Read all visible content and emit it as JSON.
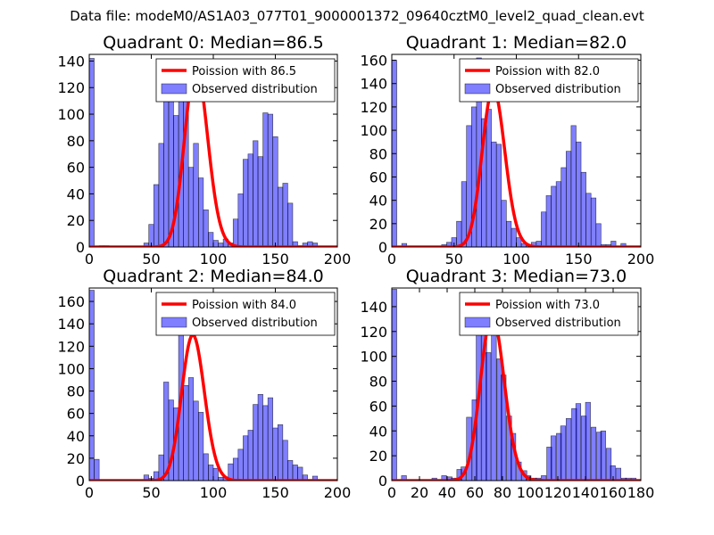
{
  "suptitle": "Data file: modeM0/AS1A03_077T01_9000001372_09640cztM0_level2_quad_clean.evt",
  "chart_data": [
    {
      "type": "bar",
      "title": "Quadrant 0: Median=86.5",
      "legend": [
        "Poission with 86.5",
        "Observed distribution"
      ],
      "legend_location": "top-right",
      "xlim": [
        0,
        200
      ],
      "ylim": [
        0,
        145
      ],
      "xticks": [
        0,
        50,
        100,
        150,
        200
      ],
      "yticks": [
        0,
        20,
        40,
        60,
        80,
        100,
        120,
        140
      ],
      "bin_width": 4,
      "histogram": [
        [
          0,
          142
        ],
        [
          8,
          1
        ],
        [
          12,
          1
        ],
        [
          44,
          3
        ],
        [
          48,
          17
        ],
        [
          52,
          47
        ],
        [
          56,
          78
        ],
        [
          60,
          112
        ],
        [
          64,
          124
        ],
        [
          68,
          99
        ],
        [
          72,
          115
        ],
        [
          76,
          128
        ],
        [
          80,
          60
        ],
        [
          84,
          78
        ],
        [
          88,
          52
        ],
        [
          92,
          28
        ],
        [
          96,
          11
        ],
        [
          100,
          5
        ],
        [
          104,
          3
        ],
        [
          108,
          6
        ],
        [
          112,
          3
        ],
        [
          116,
          21
        ],
        [
          120,
          40
        ],
        [
          124,
          66
        ],
        [
          128,
          70
        ],
        [
          132,
          80
        ],
        [
          136,
          68
        ],
        [
          140,
          101
        ],
        [
          144,
          100
        ],
        [
          148,
          83
        ],
        [
          152,
          45
        ],
        [
          156,
          48
        ],
        [
          160,
          33
        ],
        [
          164,
          4
        ],
        [
          168,
          1
        ],
        [
          172,
          3
        ],
        [
          176,
          4
        ],
        [
          180,
          3
        ]
      ],
      "poisson_peak": 136,
      "poisson_mean": 86.5
    },
    {
      "type": "bar",
      "title": "Quadrant 1: Median=82.0",
      "legend": [
        "Poission with 82.0",
        "Observed distribution"
      ],
      "legend_location": "top-right",
      "xlim": [
        0,
        200
      ],
      "ylim": [
        0,
        165
      ],
      "xticks": [
        0,
        50,
        100,
        150,
        200
      ],
      "yticks": [
        0,
        20,
        40,
        60,
        80,
        100,
        120,
        140,
        160
      ],
      "bin_width": 4,
      "histogram": [
        [
          0,
          160
        ],
        [
          8,
          3
        ],
        [
          40,
          2
        ],
        [
          44,
          4
        ],
        [
          48,
          8
        ],
        [
          52,
          22
        ],
        [
          56,
          56
        ],
        [
          60,
          104
        ],
        [
          64,
          120
        ],
        [
          68,
          162
        ],
        [
          72,
          110
        ],
        [
          76,
          118
        ],
        [
          80,
          90
        ],
        [
          84,
          88
        ],
        [
          88,
          40
        ],
        [
          92,
          22
        ],
        [
          96,
          16
        ],
        [
          100,
          8
        ],
        [
          104,
          3
        ],
        [
          108,
          1
        ],
        [
          112,
          4
        ],
        [
          116,
          5
        ],
        [
          120,
          30
        ],
        [
          124,
          44
        ],
        [
          128,
          52
        ],
        [
          132,
          56
        ],
        [
          136,
          68
        ],
        [
          140,
          82
        ],
        [
          144,
          104
        ],
        [
          148,
          90
        ],
        [
          152,
          64
        ],
        [
          156,
          46
        ],
        [
          160,
          42
        ],
        [
          164,
          20
        ],
        [
          168,
          2
        ],
        [
          172,
          2
        ],
        [
          176,
          5
        ],
        [
          184,
          3
        ]
      ],
      "poisson_peak": 136,
      "poisson_mean": 82.0
    },
    {
      "type": "bar",
      "title": "Quadrant 2: Median=84.0",
      "legend": [
        "Poission with 84.0",
        "Observed distribution"
      ],
      "legend_location": "top-right",
      "xlim": [
        0,
        200
      ],
      "ylim": [
        0,
        172
      ],
      "xticks": [
        0,
        50,
        100,
        150,
        200
      ],
      "yticks": [
        0,
        20,
        40,
        60,
        80,
        100,
        120,
        140,
        160
      ],
      "bin_width": 4,
      "histogram": [
        [
          0,
          170
        ],
        [
          4,
          19
        ],
        [
          44,
          5
        ],
        [
          48,
          2
        ],
        [
          52,
          8
        ],
        [
          56,
          23
        ],
        [
          60,
          88
        ],
        [
          64,
          72
        ],
        [
          68,
          65
        ],
        [
          72,
          162
        ],
        [
          76,
          85
        ],
        [
          80,
          92
        ],
        [
          84,
          71
        ],
        [
          88,
          61
        ],
        [
          92,
          24
        ],
        [
          96,
          14
        ],
        [
          100,
          11
        ],
        [
          104,
          3
        ],
        [
          108,
          3
        ],
        [
          112,
          15
        ],
        [
          116,
          20
        ],
        [
          120,
          28
        ],
        [
          124,
          40
        ],
        [
          128,
          45
        ],
        [
          132,
          68
        ],
        [
          136,
          77
        ],
        [
          140,
          67
        ],
        [
          144,
          74
        ],
        [
          148,
          47
        ],
        [
          152,
          50
        ],
        [
          156,
          36
        ],
        [
          160,
          18
        ],
        [
          164,
          14
        ],
        [
          168,
          12
        ],
        [
          172,
          5
        ],
        [
          176,
          1
        ],
        [
          180,
          4
        ]
      ],
      "poisson_peak": 130,
      "poisson_mean": 84.0
    },
    {
      "type": "bar",
      "title": "Quadrant 3: Median=73.0",
      "legend": [
        "Poission with 73.0",
        "Observed distribution"
      ],
      "legend_location": "top-right",
      "xlim": [
        0,
        180
      ],
      "ylim": [
        0,
        155
      ],
      "xticks": [
        0,
        20,
        40,
        60,
        80,
        100,
        120,
        140,
        160,
        180
      ],
      "yticks": [
        0,
        20,
        40,
        60,
        80,
        100,
        120,
        140
      ],
      "bin_width": 3.6,
      "histogram": [
        [
          0,
          154
        ],
        [
          7,
          4
        ],
        [
          29,
          2
        ],
        [
          36,
          4
        ],
        [
          40,
          3
        ],
        [
          43,
          2
        ],
        [
          47,
          9
        ],
        [
          50,
          11
        ],
        [
          54,
          51
        ],
        [
          58,
          65
        ],
        [
          61,
          133
        ],
        [
          65,
          141
        ],
        [
          68,
          103
        ],
        [
          72,
          142
        ],
        [
          76,
          98
        ],
        [
          79,
          85
        ],
        [
          83,
          52
        ],
        [
          86,
          38
        ],
        [
          90,
          15
        ],
        [
          94,
          8
        ],
        [
          97,
          4
        ],
        [
          101,
          2
        ],
        [
          104,
          2
        ],
        [
          108,
          4
        ],
        [
          112,
          27
        ],
        [
          115,
          36
        ],
        [
          119,
          38
        ],
        [
          122,
          44
        ],
        [
          126,
          50
        ],
        [
          130,
          58
        ],
        [
          133,
          62
        ],
        [
          137,
          52
        ],
        [
          140,
          63
        ],
        [
          144,
          43
        ],
        [
          148,
          39
        ],
        [
          151,
          40
        ],
        [
          155,
          26
        ],
        [
          158,
          12
        ],
        [
          162,
          10
        ],
        [
          166,
          2
        ],
        [
          169,
          2
        ],
        [
          173,
          2
        ]
      ],
      "poisson_peak": 133,
      "poisson_mean": 73.0
    }
  ]
}
